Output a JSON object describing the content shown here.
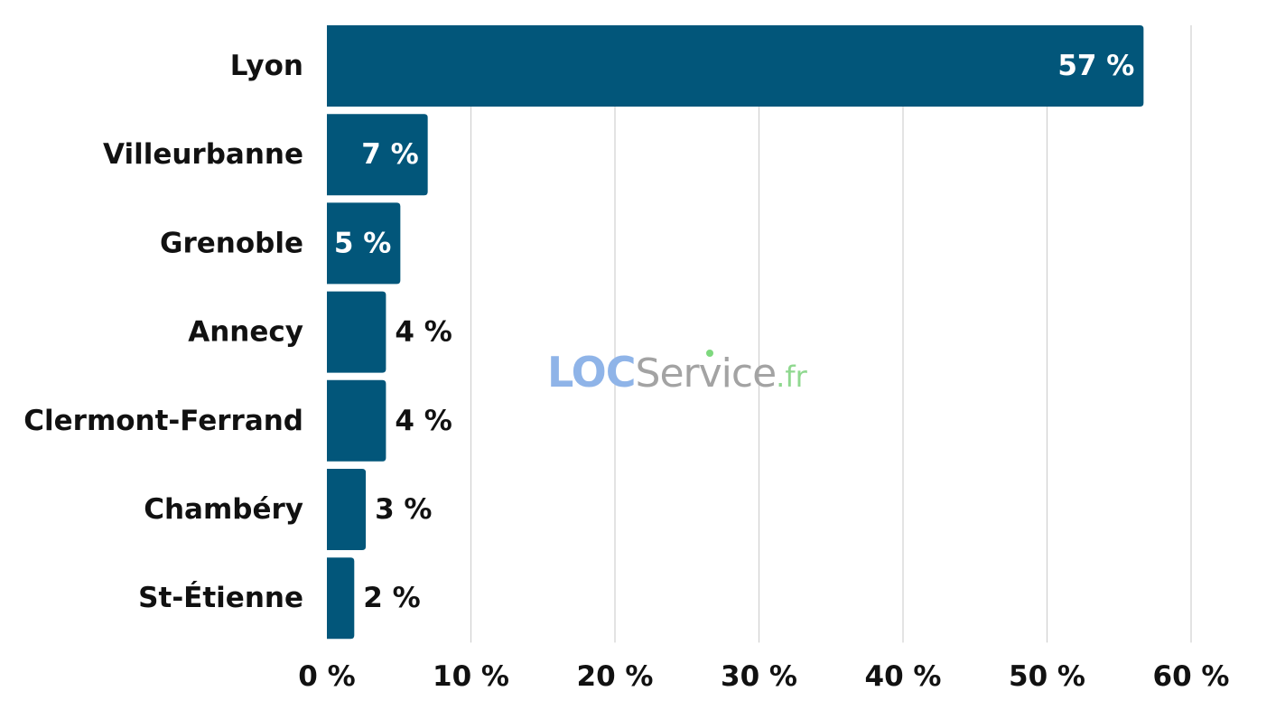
{
  "chart_data": {
    "type": "bar",
    "orientation": "horizontal",
    "categories": [
      "Lyon",
      "Villeurbanne",
      "Grenoble",
      "Annecy",
      "Clermont-Ferrand",
      "Chambéry",
      "St-Étienne"
    ],
    "values": [
      56.7,
      7.0,
      5.1,
      4.1,
      4.1,
      2.7,
      1.9
    ],
    "data_labels": [
      "57 %",
      "7 %",
      "5 %",
      "4 %",
      "4 %",
      "3 %",
      "2 %"
    ],
    "x_ticks": [
      0,
      10,
      20,
      30,
      40,
      50,
      60
    ],
    "x_tick_labels": [
      "0 %",
      "10 %",
      "20 %",
      "30 %",
      "40 %",
      "50 %",
      "60 %"
    ],
    "xlim": [
      0,
      60
    ],
    "title": "",
    "xlabel": "",
    "ylabel": "",
    "grid": "vertical",
    "legend": "none",
    "bar_color": "#02567a",
    "label_inside_color": "#ffffff",
    "label_outside_color": "#111111",
    "gridline_color": "#d0d0d0"
  },
  "watermark": {
    "brand_loc": "LOC",
    "brand_service": "Service",
    "brand_tld": ".fr",
    "loc_color": "#8fb4e8",
    "service_color": "#a3a3a3",
    "tld_color": "#8fd88f",
    "dot_color": "#7ed87e"
  }
}
